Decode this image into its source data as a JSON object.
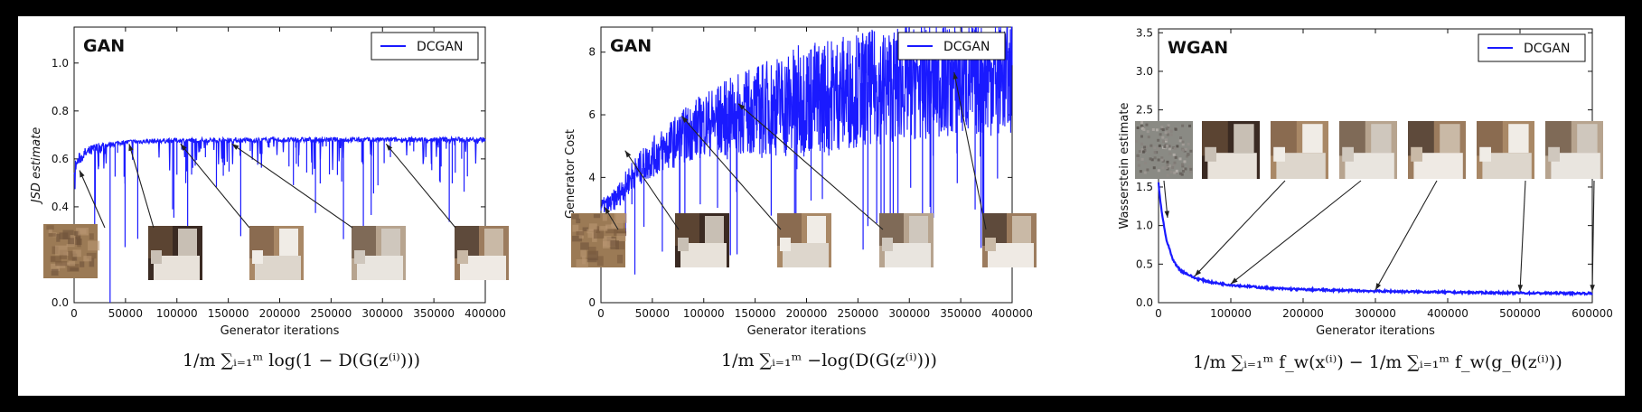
{
  "colors": {
    "line": "#1a1aff",
    "frame_bg": "#ffffff",
    "outer_bg": "#000000"
  },
  "chart_data": [
    {
      "type": "line",
      "panel_title": "GAN",
      "xlabel": "Generator iterations",
      "ylabel": "JSD estimate",
      "xlim": [
        0,
        400000
      ],
      "ylim": [
        0.0,
        1.15
      ],
      "xticks": [
        "0",
        "50000",
        "100000",
        "150000",
        "200000",
        "250000",
        "300000",
        "350000",
        "400000"
      ],
      "yticks": [
        "0.0",
        "0.2",
        "0.4",
        "0.6",
        "0.8",
        "1.0"
      ],
      "legend": {
        "label": "DCGAN",
        "position": "top-right"
      },
      "series": [
        {
          "name": "DCGAN",
          "x": [
            0,
            5000,
            10000,
            20000,
            30000,
            40000,
            50000,
            60000,
            80000,
            100000,
            150000,
            200000,
            250000,
            300000,
            350000,
            400000
          ],
          "y": [
            0.56,
            0.6,
            0.62,
            0.64,
            0.655,
            0.665,
            0.67,
            0.672,
            0.675,
            0.677,
            0.678,
            0.679,
            0.68,
            0.68,
            0.681,
            0.681
          ]
        }
      ],
      "formula": "1/m ∑ᵢ₌₁ᵐ log(1 − D(G(z⁽ⁱ⁾)))"
    },
    {
      "type": "line",
      "panel_title": "GAN",
      "xlabel": "Generator iterations",
      "ylabel": "Generator Cost",
      "xlim": [
        0,
        400000
      ],
      "ylim": [
        0,
        8.8
      ],
      "xticks": [
        "0",
        "50000",
        "100000",
        "150000",
        "200000",
        "250000",
        "300000",
        "350000",
        "400000"
      ],
      "yticks": [
        "0",
        "4",
        "6",
        "8"
      ],
      "legend": {
        "label": "DCGAN",
        "position": "top-right"
      },
      "series": [
        {
          "name": "DCGAN",
          "x": [
            0,
            10000,
            20000,
            30000,
            50000,
            75000,
            100000,
            150000,
            200000,
            250000,
            300000,
            350000,
            400000
          ],
          "y": [
            3.1,
            3.2,
            3.6,
            4.1,
            4.7,
            5.3,
            5.8,
            6.3,
            6.7,
            7.0,
            7.2,
            7.3,
            7.4
          ]
        }
      ],
      "formula": "1/m ∑ᵢ₌₁ᵐ −log(D(G(z⁽ⁱ⁾)))"
    },
    {
      "type": "line",
      "panel_title": "WGAN",
      "xlabel": "Generator iterations",
      "ylabel": "Wasserstein estimate",
      "xlim": [
        0,
        600000
      ],
      "ylim": [
        0.0,
        3.55
      ],
      "xticks": [
        "0",
        "100000",
        "200000",
        "300000",
        "400000",
        "500000",
        "600000"
      ],
      "yticks": [
        "0.0",
        "0.5",
        "1.0",
        "1.5",
        "2.0",
        "2.5",
        "3.0",
        "3.5"
      ],
      "legend": {
        "label": "DCGAN",
        "position": "top-right"
      },
      "series": [
        {
          "name": "DCGAN",
          "x": [
            0,
            2000,
            5000,
            10000,
            20000,
            30000,
            50000,
            75000,
            100000,
            150000,
            200000,
            300000,
            400000,
            500000,
            600000
          ],
          "y": [
            1.55,
            1.35,
            1.15,
            0.85,
            0.55,
            0.42,
            0.32,
            0.26,
            0.23,
            0.19,
            0.17,
            0.15,
            0.135,
            0.125,
            0.12
          ]
        }
      ],
      "formula": "1/m ∑ᵢ₌₁ᵐ f_w(x⁽ⁱ⁾) − 1/m ∑ᵢ₌₁ᵐ f_w(g_θ(z⁽ⁱ⁾))"
    }
  ]
}
